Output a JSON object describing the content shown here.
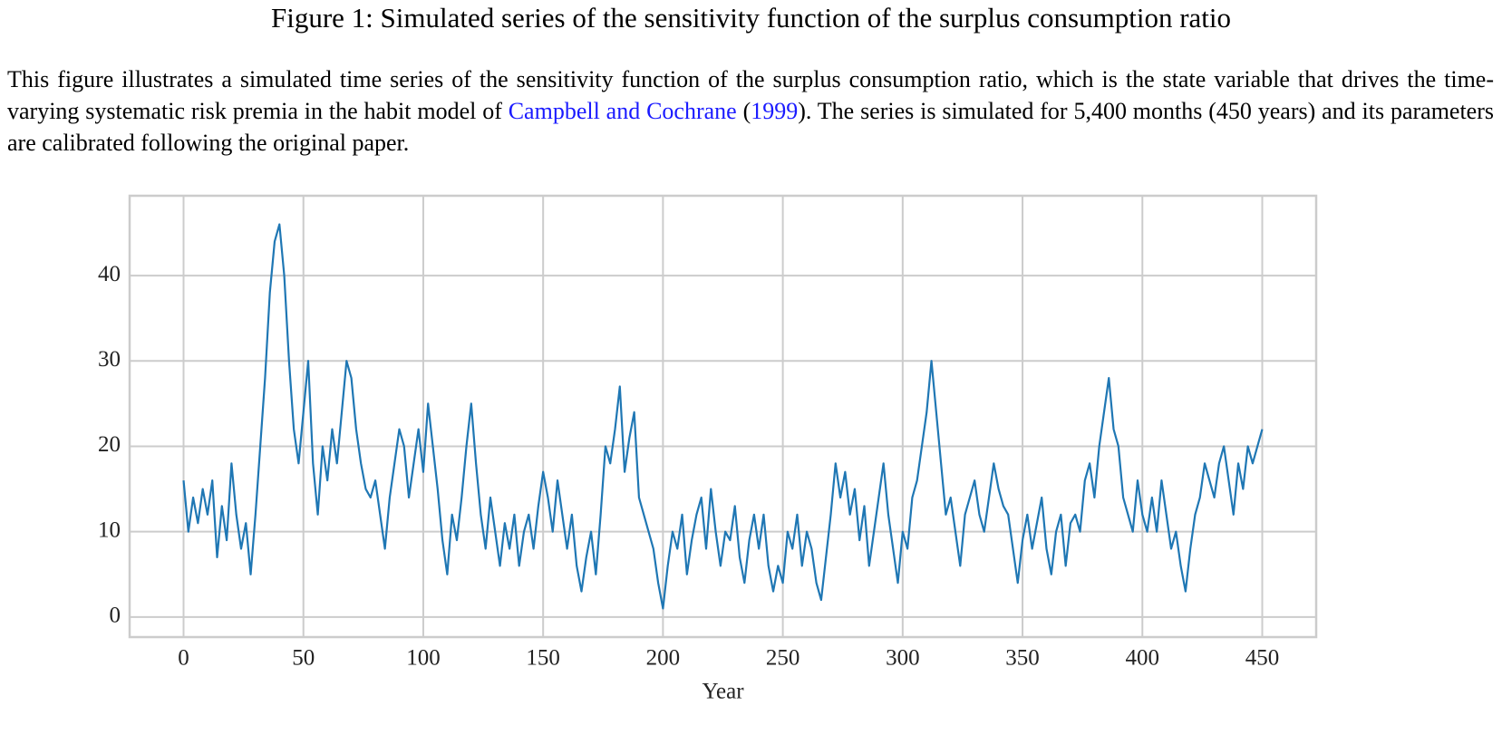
{
  "title": "Figure 1: Simulated series of the sensitivity function of the surplus consumption ratio",
  "caption": [
    "This figure illustrates a simulated time series of the sensitivity function of the surplus consumption ratio, which is the state variable that drives the time-varying systematic risk premia in the habit model of ",
    "Campbell and Cochrane",
    " (",
    "1999",
    "). The series is simulated for 5,400 months (450 years) and its parameters are calibrated following the original paper."
  ],
  "chart_data": {
    "type": "line",
    "xlabel": "Year",
    "x": [
      0,
      2,
      4,
      6,
      8,
      10,
      12,
      14,
      16,
      18,
      20,
      22,
      24,
      26,
      28,
      30,
      32,
      34,
      36,
      38,
      40,
      42,
      44,
      46,
      48,
      50,
      52,
      54,
      56,
      58,
      60,
      62,
      64,
      66,
      68,
      70,
      72,
      74,
      76,
      78,
      80,
      82,
      84,
      86,
      88,
      90,
      92,
      94,
      96,
      98,
      100,
      102,
      104,
      106,
      108,
      110,
      112,
      114,
      116,
      118,
      120,
      122,
      124,
      126,
      128,
      130,
      132,
      134,
      136,
      138,
      140,
      142,
      144,
      146,
      148,
      150,
      152,
      154,
      156,
      158,
      160,
      162,
      164,
      166,
      168,
      170,
      172,
      174,
      176,
      178,
      180,
      182,
      184,
      186,
      188,
      190,
      192,
      194,
      196,
      198,
      200,
      202,
      204,
      206,
      208,
      210,
      212,
      214,
      216,
      218,
      220,
      222,
      224,
      226,
      228,
      230,
      232,
      234,
      236,
      238,
      240,
      242,
      244,
      246,
      248,
      250,
      252,
      254,
      256,
      258,
      260,
      262,
      264,
      266,
      268,
      270,
      272,
      274,
      276,
      278,
      280,
      282,
      284,
      286,
      288,
      290,
      292,
      294,
      296,
      298,
      300,
      302,
      304,
      306,
      308,
      310,
      312,
      314,
      316,
      318,
      320,
      322,
      324,
      326,
      328,
      330,
      332,
      334,
      336,
      338,
      340,
      342,
      344,
      346,
      348,
      350,
      352,
      354,
      356,
      358,
      360,
      362,
      364,
      366,
      368,
      370,
      372,
      374,
      376,
      378,
      380,
      382,
      384,
      386,
      388,
      390,
      392,
      394,
      396,
      398,
      400,
      402,
      404,
      406,
      408,
      410,
      412,
      414,
      416,
      418,
      420,
      422,
      424,
      426,
      428,
      430,
      432,
      434,
      436,
      438,
      440,
      442,
      444,
      446,
      448,
      450
    ],
    "series": [
      {
        "color": "#1f77b4",
        "values": [
          16,
          10,
          14,
          11,
          15,
          12,
          16,
          7,
          13,
          9,
          18,
          12,
          8,
          11,
          5,
          12,
          20,
          28,
          38,
          44,
          46,
          40,
          30,
          22,
          18,
          24,
          30,
          18,
          12,
          20,
          16,
          22,
          18,
          24,
          30,
          28,
          22,
          18,
          15,
          14,
          16,
          12,
          8,
          14,
          18,
          22,
          20,
          14,
          18,
          22,
          17,
          25,
          20,
          15,
          9,
          5,
          12,
          9,
          14,
          20,
          25,
          18,
          12,
          8,
          14,
          10,
          6,
          11,
          8,
          12,
          6,
          10,
          12,
          8,
          13,
          17,
          14,
          10,
          16,
          12,
          8,
          12,
          6,
          3,
          7,
          10,
          5,
          12,
          20,
          18,
          22,
          27,
          17,
          21,
          24,
          14,
          12,
          10,
          8,
          4,
          1,
          6,
          10,
          8,
          12,
          5,
          9,
          12,
          14,
          8,
          15,
          10,
          6,
          10,
          9,
          13,
          7,
          4,
          9,
          12,
          8,
          12,
          6,
          3,
          6,
          4,
          10,
          8,
          12,
          6,
          10,
          8,
          4,
          2,
          7,
          12,
          18,
          14,
          17,
          12,
          15,
          9,
          13,
          6,
          10,
          14,
          18,
          12,
          8,
          4,
          10,
          8,
          14,
          16,
          20,
          24,
          30,
          24,
          18,
          12,
          14,
          10,
          6,
          12,
          14,
          16,
          12,
          10,
          14,
          18,
          15,
          13,
          12,
          8,
          4,
          9,
          12,
          8,
          11,
          14,
          8,
          5,
          10,
          12,
          6,
          11,
          12,
          10,
          16,
          18,
          14,
          20,
          24,
          28,
          22,
          20,
          14,
          12,
          10,
          16,
          12,
          10,
          14,
          10,
          16,
          12,
          8,
          10,
          6,
          3,
          8,
          12,
          14,
          18,
          16,
          14,
          18,
          20,
          16,
          12,
          18,
          15,
          20,
          18,
          20,
          22
        ]
      }
    ],
    "xlim": [
      -22.5,
      472.5
    ],
    "ylim": [
      -2.35,
      49.35
    ],
    "xticks": [
      0,
      50,
      100,
      150,
      200,
      250,
      300,
      350,
      400,
      450
    ],
    "yticks": [
      0,
      10,
      20,
      30,
      40
    ],
    "grid": true
  }
}
